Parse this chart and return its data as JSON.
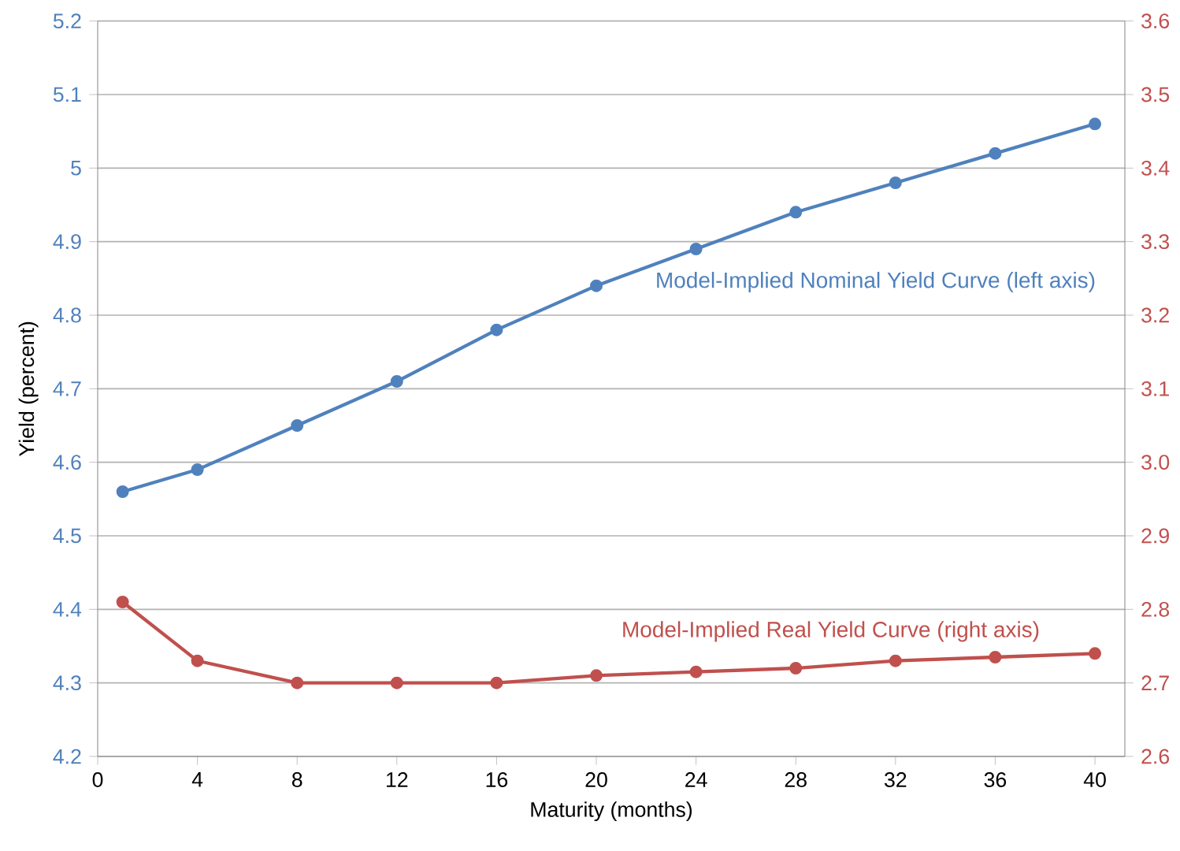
{
  "chart_data": {
    "type": "line",
    "xlabel": "Maturity (months)",
    "ylabel": "Yield  (percent)",
    "xlim": [
      0,
      41.2
    ],
    "xticks": [
      0,
      4,
      8,
      12,
      16,
      20,
      24,
      28,
      32,
      36,
      40
    ],
    "ylim": [
      4.2,
      5.2
    ],
    "yticks": [
      4.2,
      4.3,
      4.4,
      4.5,
      4.6,
      4.7,
      4.8,
      4.9,
      5,
      5.1,
      5.2
    ],
    "y2lim": [
      2.6,
      3.6
    ],
    "y2ticks": [
      2.6,
      2.7,
      2.8,
      2.9,
      {
        "value": 3.0,
        "label": "3.0"
      },
      3.1,
      3.2,
      3.3,
      3.4,
      3.5,
      3.6
    ],
    "grid": "y",
    "marker": "circle",
    "line_style": "solid",
    "x": [
      1,
      4,
      8,
      12,
      16,
      20,
      24,
      28,
      32,
      36,
      40
    ],
    "series": [
      {
        "name": "Model-Implied Nominal Yield Curve (left axis)",
        "color": "#4f81bd",
        "values": [
          4.56,
          4.59,
          4.65,
          4.71,
          4.78,
          4.84,
          4.89,
          4.94,
          4.98,
          5.02,
          5.06
        ]
      },
      {
        "name": "Model-Implied Real Yield Curve (right axis)",
        "color": "#c0504d",
        "axis": "y2",
        "values": [
          2.81,
          2.73,
          2.7,
          2.7,
          2.7,
          2.71,
          2.715,
          2.72,
          2.73,
          2.735,
          2.74
        ]
      }
    ]
  }
}
